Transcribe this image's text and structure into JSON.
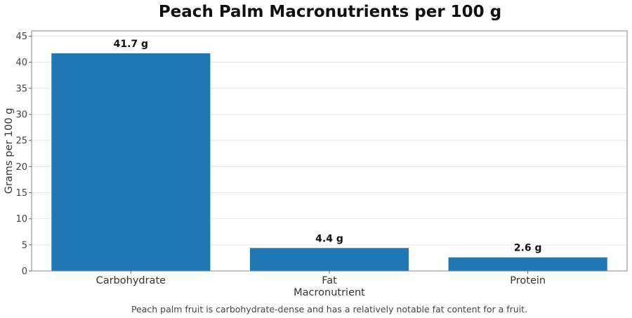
{
  "chart_data": {
    "type": "bar",
    "title": "Peach Palm Macronutrients per 100 g",
    "xlabel": "Macronutrient",
    "ylabel": "Grams per 100 g",
    "categories": [
      "Carbohydrate",
      "Fat",
      "Protein"
    ],
    "values": [
      41.7,
      4.4,
      2.6
    ],
    "data_labels": [
      "41.7 g",
      "4.4 g",
      "2.6 g"
    ],
    "ylim": [
      0,
      46
    ],
    "yticks": [
      0,
      5,
      10,
      15,
      20,
      25,
      30,
      35,
      40,
      45
    ],
    "grid": "horizontal",
    "bar_color": "#1f77b4",
    "caption": "Peach palm fruit is carbohydrate-dense and has a relatively notable fat content for a fruit."
  }
}
